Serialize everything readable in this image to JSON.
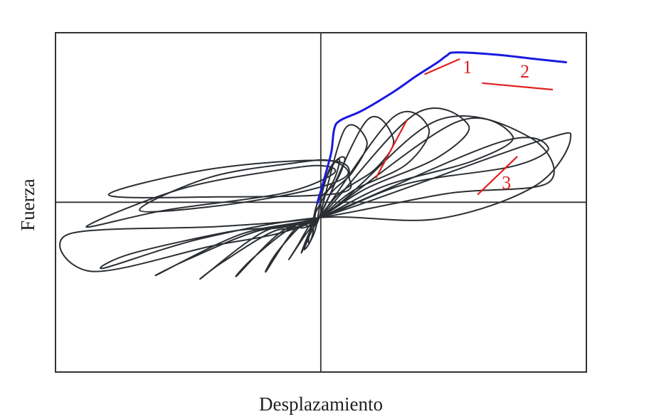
{
  "chart_data": {
    "type": "line",
    "title": "",
    "xlabel": "Desplazamiento",
    "ylabel": "Fuerza",
    "tick_labels": false,
    "grid": false,
    "colors": {
      "loops": "#2b2f33",
      "envelope": "#1a1adf",
      "annotation": "#e01f1f",
      "frame": "#333333"
    },
    "series": [
      {
        "name": "",
        "role": "hysteresis-loop",
        "x": [
          0.2,
          3.1,
          5.6,
          3.9,
          1.6,
          0.2,
          -0.7,
          -1.8,
          -1.2,
          -0.3,
          0.2
        ],
        "y": [
          -1.3,
          6.8,
          5.6,
          2.8,
          1.0,
          -1.3,
          -2.6,
          -4.5,
          -3.2,
          -1.6,
          -1.3
        ]
      },
      {
        "name": "",
        "role": "hysteresis-loop",
        "x": [
          0.2,
          5.6,
          8.6,
          6.6,
          2.6,
          0.2,
          -1.3,
          -3.2,
          -2.2,
          -0.8,
          0.2
        ],
        "y": [
          -1.3,
          7.6,
          5.8,
          3.2,
          1.0,
          -1.3,
          -2.8,
          -5.1,
          -3.8,
          -1.9,
          -1.3
        ]
      },
      {
        "name": "",
        "role": "hysteresis-loop",
        "x": [
          0.2,
          8.6,
          12.6,
          10.1,
          4.1,
          0.2,
          -2.6,
          -5.8,
          -4.6,
          -1.8,
          0.2
        ],
        "y": [
          -1.3,
          7.9,
          6.8,
          3.6,
          1.2,
          -1.3,
          -2.4,
          -6.2,
          -4.5,
          -2.0,
          -1.3
        ]
      },
      {
        "name": "",
        "role": "hysteresis-loop",
        "x": [
          0.2,
          11.1,
          17.1,
          13.6,
          5.6,
          0.2,
          -4.1,
          -9.1,
          -7.3,
          -3.1,
          0.2
        ],
        "y": [
          -1.3,
          8.2,
          7.1,
          4.2,
          1.4,
          -1.3,
          -2.6,
          -6.6,
          -5.0,
          -2.3,
          -1.3
        ]
      },
      {
        "name": "",
        "role": "hysteresis-loop",
        "x": [
          0.2,
          15.6,
          22.1,
          17.6,
          7.6,
          0.2,
          -6.1,
          -13.1,
          -10.6,
          -5.1,
          0.2
        ],
        "y": [
          -1.3,
          7.4,
          6.1,
          3.9,
          1.6,
          -1.3,
          -2.6,
          -6.8,
          -5.3,
          -2.6,
          -1.3
        ]
      },
      {
        "name": "",
        "role": "hysteresis-loop",
        "x": [
          0.2,
          20.6,
          26.1,
          22.1,
          10.1,
          0.2,
          -8.6,
          -18.1,
          -14.6,
          -7.1,
          0.2
        ],
        "y": [
          -1.3,
          5.6,
          5.1,
          3.4,
          1.8,
          -1.3,
          -2.8,
          -6.5,
          -5.1,
          -2.6,
          -1.3
        ]
      },
      {
        "name": "",
        "role": "hysteresis-loop",
        "x": [
          0.2,
          24.6,
          28.6,
          24.6,
          13.6,
          0.2,
          -13.1,
          -24.1,
          -21.1,
          -10.1,
          0.2
        ],
        "y": [
          -1.3,
          5.6,
          5.9,
          1.6,
          -1.4,
          -1.3,
          -3.2,
          -5.9,
          -4.6,
          -2.6,
          -1.3
        ]
      },
      {
        "name": "",
        "role": "hysteresis-loop",
        "x": [
          0.2,
          13.6,
          24.1,
          26.1,
          14.6,
          0.2,
          -11.1,
          -28.1,
          -25.6,
          -12.6,
          0.2
        ],
        "y": [
          -1.3,
          7.6,
          6.0,
          1.9,
          0.9,
          -1.3,
          -2.1,
          -2.8,
          -6.2,
          -4.0,
          -1.3
        ]
      },
      {
        "name": "",
        "role": "hysteresis-loop",
        "x": [
          0.1,
          1.9,
          3.1,
          2.1,
          0.1,
          -0.7,
          -1.5,
          -0.6,
          0.1
        ],
        "y": [
          0.5,
          3.7,
          4.1,
          2.0,
          0.2,
          -2.4,
          -4.2,
          -3.0,
          0.5
        ]
      },
      {
        "name": "",
        "role": "hysteresis-loop",
        "x": [
          0.5,
          1.4,
          2.5,
          1.9,
          0.6,
          -0.6,
          -1.0,
          -0.2,
          0.5
        ],
        "y": [
          0.8,
          3.2,
          4.0,
          2.2,
          0.4,
          -1.6,
          -3.6,
          -2.3,
          0.8
        ]
      },
      {
        "name": "",
        "role": "hysteresis-loop",
        "x": [
          -20.1,
          -12.1,
          -2.6,
          1.6,
          3.4,
          -1.1,
          -11.1,
          -20.1
        ],
        "y": [
          -0.6,
          2.4,
          3.7,
          3.9,
          2.6,
          1.2,
          -0.2,
          -0.6
        ]
      },
      {
        "name": "",
        "role": "hysteresis-loop",
        "x": [
          -26.1,
          -15.1,
          -3.1,
          1.1,
          1.6,
          -4.1,
          -17.1,
          -26.1
        ],
        "y": [
          -2.1,
          1.4,
          3.2,
          3.4,
          2.6,
          0.9,
          -0.6,
          -2.1
        ]
      },
      {
        "name": "",
        "role": "hysteresis-loop",
        "x": [
          -23.6,
          -11.6,
          1.6,
          3.6,
          2.1,
          -11.1,
          -23.6
        ],
        "y": [
          0.8,
          3.2,
          3.9,
          2.3,
          0.9,
          0.6,
          0.8
        ]
      },
      {
        "name": "",
        "role": "envelope",
        "x": [
          0.0,
          1.1,
          1.6,
          1.9,
          2.6,
          5.1,
          8.6,
          11.1,
          13.6,
          14.6,
          15.6,
          20.1,
          24.6,
          28.1
        ],
        "y": [
          0.0,
          3.2,
          4.8,
          6.8,
          7.6,
          8.5,
          10.2,
          11.6,
          12.9,
          13.5,
          13.8,
          13.6,
          13.2,
          12.9
        ]
      }
    ],
    "annotations": [
      {
        "text": "1",
        "x": [
          12.1,
          16.1
        ],
        "y": [
          11.8,
          13.2
        ]
      },
      {
        "text": "2",
        "x": [
          18.6,
          26.6
        ],
        "y": [
          11.0,
          10.4
        ]
      },
      {
        "text": "3",
        "x": [
          18.1,
          22.6
        ],
        "y": [
          0.8,
          4.3
        ]
      },
      {
        "text": "",
        "x": [
          6.6,
          10.1
        ],
        "y": [
          2.3,
          7.6
        ]
      }
    ],
    "xlim": [
      -29.6,
      30.4
    ],
    "ylim": [
      -15.4,
      15.6
    ]
  }
}
